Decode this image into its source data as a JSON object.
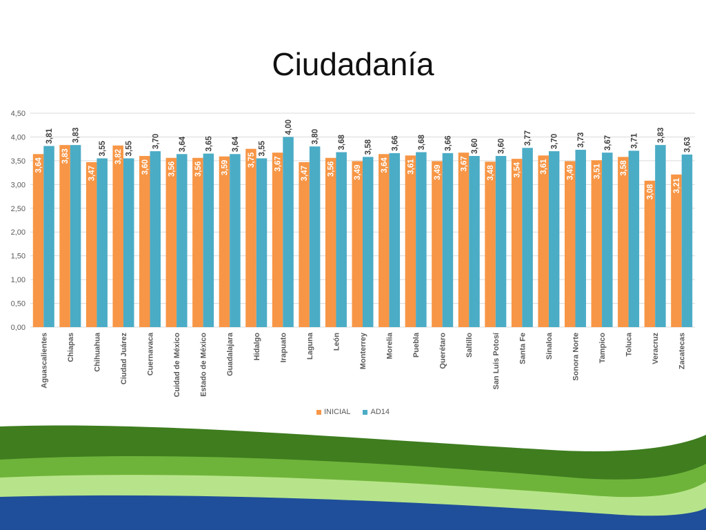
{
  "slide": {
    "title": "Ciudadanía"
  },
  "colors": {
    "inicial": "#F79646",
    "ad14": "#4BACC6",
    "grid": "#d9d9d9",
    "axis_text": "#595959"
  },
  "chart_data": {
    "type": "bar",
    "title": "",
    "xlabel": "",
    "ylabel": "",
    "ylim": [
      0,
      4.5
    ],
    "yticks": [
      "0,00",
      "0,50",
      "1,00",
      "1,50",
      "2,00",
      "2,50",
      "3,00",
      "3,50",
      "4,00",
      "4,50"
    ],
    "grid": true,
    "legend_position": "bottom",
    "categories": [
      "Aguascalientes",
      "Chiapas",
      "Chihuahua",
      "Ciudad Juárez",
      "Cuernavaca",
      "Cuidad de México",
      "Estado de México",
      "Guadalajara",
      "Hidalgo",
      "Irapuato",
      "Laguna",
      "León",
      "Monterrey",
      "Morelia",
      "Puebla",
      "Querétaro",
      "Saltillo",
      "San Luis Potosí",
      "Santa Fe",
      "Sinaloa",
      "Sonora Norte",
      "Tampico",
      "Toluca",
      "Veracruz",
      "Zacatecas"
    ],
    "series": [
      {
        "name": "INICIAL",
        "values": [
          3.64,
          3.83,
          3.47,
          3.82,
          3.6,
          3.56,
          3.56,
          3.59,
          3.75,
          3.67,
          3.47,
          3.56,
          3.49,
          3.64,
          3.61,
          3.49,
          3.67,
          3.48,
          3.54,
          3.61,
          3.49,
          3.51,
          3.58,
          3.08,
          3.21
        ],
        "labels": [
          "3,64",
          "3,83",
          "3,47",
          "3,82",
          "3,60",
          "3,56",
          "3,56",
          "3,59",
          "3,75",
          "3,67",
          "3,47",
          "3,56",
          "3,49",
          "3,64",
          "3,61",
          "3,49",
          "3,67",
          "3,48",
          "3,54",
          "3,61",
          "3,49",
          "3,51",
          "3,58",
          "3,08",
          "3,21"
        ]
      },
      {
        "name": "AD14",
        "values": [
          3.81,
          3.83,
          3.55,
          3.55,
          3.7,
          3.64,
          3.65,
          3.64,
          3.55,
          4.0,
          3.8,
          3.68,
          3.58,
          3.66,
          3.68,
          3.66,
          3.6,
          3.6,
          3.77,
          3.7,
          3.73,
          3.67,
          3.71,
          3.83,
          3.63
        ],
        "labels": [
          "3,81",
          "3,83",
          "3,55",
          "3,55",
          "3,70",
          "3,64",
          "3,65",
          "3,64",
          "3,55",
          "4,00",
          "3,80",
          "3,68",
          "3,58",
          "3,66",
          "3,68",
          "3,66",
          "3,60",
          "3,60",
          "3,77",
          "3,70",
          "3,73",
          "3,67",
          "3,71",
          "3,83",
          "3,63"
        ]
      }
    ]
  }
}
